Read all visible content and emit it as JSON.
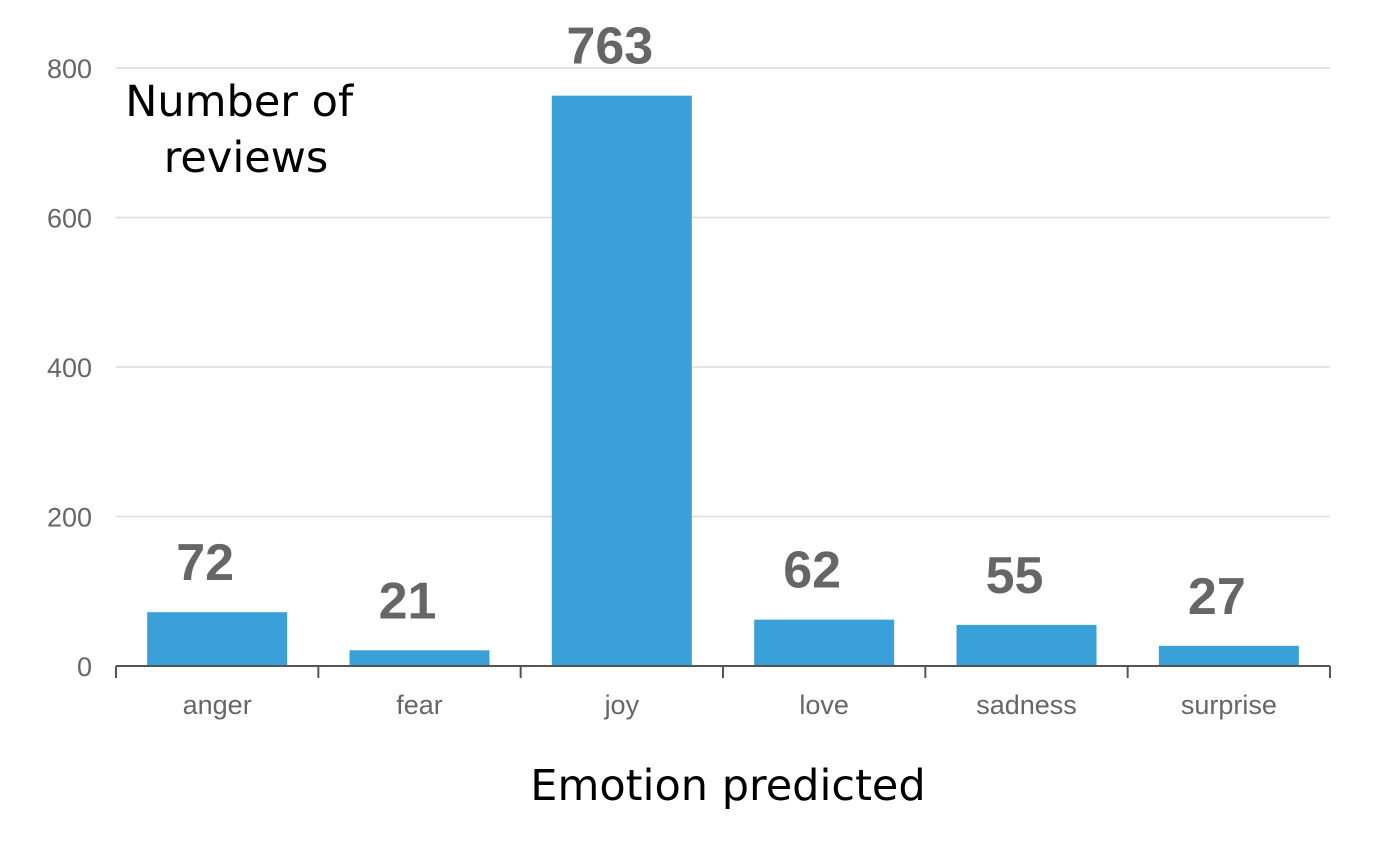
{
  "colors": {
    "bar": "#3aa0d8",
    "grid": "#dcdcdc",
    "axis": "#555555",
    "tick_text": "#666666",
    "value_text": "#666666",
    "title_text": "#000000"
  },
  "chart_data": {
    "type": "bar",
    "categories": [
      "anger",
      "fear",
      "joy",
      "love",
      "sadness",
      "surprise"
    ],
    "values": [
      72,
      21,
      763,
      62,
      55,
      27
    ],
    "data_labels": [
      "72",
      "21",
      "763",
      "62",
      "55",
      "27"
    ],
    "title": "",
    "xlabel": "Emotion predicted",
    "ylabel_lines": [
      "Number of",
      "reviews"
    ],
    "ylim": [
      0,
      800
    ],
    "yticks": [
      0,
      200,
      400,
      600,
      800
    ],
    "ytick_labels": [
      "0",
      "200",
      "400",
      "600",
      "800"
    ],
    "grid": true,
    "legend": "none"
  }
}
